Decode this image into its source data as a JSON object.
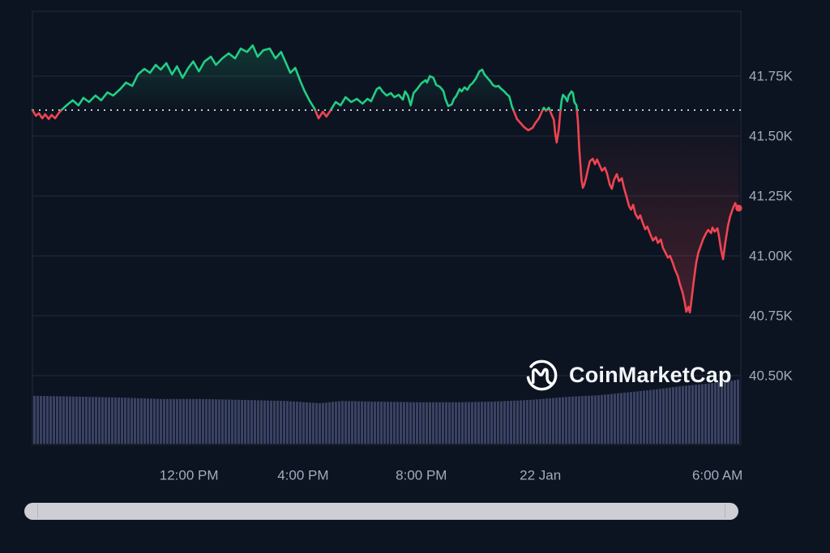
{
  "watermark": {
    "text": "CoinMarketCap"
  },
  "colors": {
    "up": "#21CE85",
    "down": "#EF4452",
    "background": "#0D1421",
    "grid": "#232A3C",
    "axis_text": "#A2AABD",
    "baseline_dots": "#DDE1E8",
    "volume_bar": "#3A4264",
    "scrollbar": "#CDCFD5",
    "logo": "#FFFFFF"
  },
  "chart_data": {
    "type": "line",
    "title": "24h cryptocurrency price chart (CoinMarketCap watermark), price in thousands USD",
    "open_price_k": 41.608,
    "last_price_k": 41.2,
    "high_k": 41.88,
    "low_k": 40.76,
    "y_axis": {
      "unit": "K",
      "tick_labels": [
        "41.75K",
        "41.50K",
        "41.25K",
        "41.00K",
        "40.75K",
        "40.50K"
      ],
      "tick_values_k": [
        41.75,
        41.5,
        41.25,
        41.0,
        40.75,
        40.5
      ],
      "side": "right"
    },
    "x_axis": {
      "tick_labels": [
        "12:00 PM",
        "4:00 PM",
        "8:00 PM",
        "22 Jan",
        "6:00 AM"
      ],
      "tick_positions": [
        0.221,
        0.382,
        0.549,
        0.717,
        0.967
      ]
    },
    "baseline": {
      "style": "dotted",
      "value_k": 41.608,
      "meaning": "open price; line green above, red below"
    },
    "series": [
      {
        "name": "price",
        "points_t_priceK": [
          [
            0.0,
            41.608
          ],
          [
            0.005,
            41.584
          ],
          [
            0.009,
            41.595
          ],
          [
            0.014,
            41.574
          ],
          [
            0.018,
            41.591
          ],
          [
            0.023,
            41.571
          ],
          [
            0.027,
            41.588
          ],
          [
            0.032,
            41.574
          ],
          [
            0.037,
            41.595
          ],
          [
            0.041,
            41.608
          ],
          [
            0.046,
            41.622
          ],
          [
            0.051,
            41.635
          ],
          [
            0.057,
            41.649
          ],
          [
            0.065,
            41.628
          ],
          [
            0.072,
            41.659
          ],
          [
            0.08,
            41.642
          ],
          [
            0.089,
            41.669
          ],
          [
            0.097,
            41.649
          ],
          [
            0.106,
            41.682
          ],
          [
            0.114,
            41.669
          ],
          [
            0.124,
            41.696
          ],
          [
            0.132,
            41.723
          ],
          [
            0.141,
            41.709
          ],
          [
            0.149,
            41.757
          ],
          [
            0.158,
            41.78
          ],
          [
            0.166,
            41.764
          ],
          [
            0.174,
            41.797
          ],
          [
            0.181,
            41.777
          ],
          [
            0.189,
            41.804
          ],
          [
            0.197,
            41.757
          ],
          [
            0.204,
            41.791
          ],
          [
            0.212,
            41.743
          ],
          [
            0.22,
            41.784
          ],
          [
            0.227,
            41.811
          ],
          [
            0.235,
            41.77
          ],
          [
            0.243,
            41.811
          ],
          [
            0.252,
            41.831
          ],
          [
            0.259,
            41.797
          ],
          [
            0.268,
            41.824
          ],
          [
            0.277,
            41.845
          ],
          [
            0.286,
            41.824
          ],
          [
            0.294,
            41.865
          ],
          [
            0.303,
            41.851
          ],
          [
            0.311,
            41.878
          ],
          [
            0.318,
            41.831
          ],
          [
            0.326,
            41.858
          ],
          [
            0.335,
            41.865
          ],
          [
            0.343,
            41.824
          ],
          [
            0.351,
            41.851
          ],
          [
            0.357,
            41.811
          ],
          [
            0.364,
            41.764
          ],
          [
            0.371,
            41.784
          ],
          [
            0.378,
            41.73
          ],
          [
            0.384,
            41.689
          ],
          [
            0.391,
            41.649
          ],
          [
            0.398,
            41.615
          ],
          [
            0.404,
            41.574
          ],
          [
            0.41,
            41.601
          ],
          [
            0.415,
            41.581
          ],
          [
            0.421,
            41.608
          ],
          [
            0.428,
            41.642
          ],
          [
            0.435,
            41.628
          ],
          [
            0.442,
            41.662
          ],
          [
            0.45,
            41.642
          ],
          [
            0.458,
            41.655
          ],
          [
            0.466,
            41.635
          ],
          [
            0.473,
            41.655
          ],
          [
            0.478,
            41.645
          ],
          [
            0.486,
            41.696
          ],
          [
            0.49,
            41.703
          ],
          [
            0.494,
            41.686
          ],
          [
            0.5,
            41.669
          ],
          [
            0.506,
            41.679
          ],
          [
            0.511,
            41.662
          ],
          [
            0.517,
            41.672
          ],
          [
            0.523,
            41.652
          ],
          [
            0.526,
            41.686
          ],
          [
            0.53,
            41.669
          ],
          [
            0.534,
            41.628
          ],
          [
            0.538,
            41.679
          ],
          [
            0.543,
            41.696
          ],
          [
            0.549,
            41.72
          ],
          [
            0.555,
            41.733
          ],
          [
            0.557,
            41.723
          ],
          [
            0.561,
            41.75
          ],
          [
            0.566,
            41.743
          ],
          [
            0.57,
            41.713
          ],
          [
            0.575,
            41.706
          ],
          [
            0.58,
            41.689
          ],
          [
            0.583,
            41.655
          ],
          [
            0.587,
            41.625
          ],
          [
            0.592,
            41.632
          ],
          [
            0.595,
            41.655
          ],
          [
            0.598,
            41.666
          ],
          [
            0.603,
            41.696
          ],
          [
            0.606,
            41.686
          ],
          [
            0.61,
            41.703
          ],
          [
            0.614,
            41.693
          ],
          [
            0.618,
            41.713
          ],
          [
            0.621,
            41.72
          ],
          [
            0.626,
            41.74
          ],
          [
            0.631,
            41.77
          ],
          [
            0.635,
            41.777
          ],
          [
            0.638,
            41.757
          ],
          [
            0.643,
            41.74
          ],
          [
            0.646,
            41.73
          ],
          [
            0.65,
            41.713
          ],
          [
            0.654,
            41.706
          ],
          [
            0.658,
            41.709
          ],
          [
            0.661,
            41.699
          ],
          [
            0.666,
            41.686
          ],
          [
            0.669,
            41.676
          ],
          [
            0.673,
            41.666
          ],
          [
            0.675,
            41.645
          ],
          [
            0.677,
            41.622
          ],
          [
            0.68,
            41.601
          ],
          [
            0.684,
            41.571
          ],
          [
            0.689,
            41.554
          ],
          [
            0.694,
            41.537
          ],
          [
            0.7,
            41.524
          ],
          [
            0.706,
            41.534
          ],
          [
            0.71,
            41.554
          ],
          [
            0.715,
            41.574
          ],
          [
            0.719,
            41.601
          ],
          [
            0.722,
            41.618
          ],
          [
            0.725,
            41.605
          ],
          [
            0.729,
            41.618
          ],
          [
            0.732,
            41.595
          ],
          [
            0.736,
            41.568
          ],
          [
            0.738,
            41.51
          ],
          [
            0.74,
            41.473
          ],
          [
            0.743,
            41.527
          ],
          [
            0.745,
            41.595
          ],
          [
            0.747,
            41.649
          ],
          [
            0.749,
            41.672
          ],
          [
            0.752,
            41.662
          ],
          [
            0.755,
            41.645
          ],
          [
            0.757,
            41.669
          ],
          [
            0.761,
            41.686
          ],
          [
            0.763,
            41.679
          ],
          [
            0.765,
            41.642
          ],
          [
            0.768,
            41.628
          ],
          [
            0.77,
            41.561
          ],
          [
            0.772,
            41.443
          ],
          [
            0.775,
            41.318
          ],
          [
            0.777,
            41.284
          ],
          [
            0.779,
            41.297
          ],
          [
            0.782,
            41.331
          ],
          [
            0.784,
            41.358
          ],
          [
            0.787,
            41.395
          ],
          [
            0.791,
            41.405
          ],
          [
            0.794,
            41.382
          ],
          [
            0.797,
            41.402
          ],
          [
            0.801,
            41.375
          ],
          [
            0.804,
            41.355
          ],
          [
            0.808,
            41.368
          ],
          [
            0.811,
            41.345
          ],
          [
            0.815,
            41.297
          ],
          [
            0.818,
            41.28
          ],
          [
            0.821,
            41.318
          ],
          [
            0.825,
            41.341
          ],
          [
            0.828,
            41.311
          ],
          [
            0.832,
            41.324
          ],
          [
            0.835,
            41.284
          ],
          [
            0.839,
            41.243
          ],
          [
            0.842,
            41.209
          ],
          [
            0.845,
            41.193
          ],
          [
            0.848,
            41.213
          ],
          [
            0.851,
            41.176
          ],
          [
            0.855,
            41.155
          ],
          [
            0.858,
            41.169
          ],
          [
            0.861,
            41.142
          ],
          [
            0.865,
            41.111
          ],
          [
            0.868,
            41.122
          ],
          [
            0.872,
            41.091
          ],
          [
            0.876,
            41.064
          ],
          [
            0.88,
            41.078
          ],
          [
            0.883,
            41.054
          ],
          [
            0.887,
            41.068
          ],
          [
            0.89,
            41.034
          ],
          [
            0.894,
            41.01
          ],
          [
            0.897,
            40.993
          ],
          [
            0.9,
            41.0
          ],
          [
            0.904,
            40.97
          ],
          [
            0.907,
            40.943
          ],
          [
            0.911,
            40.916
          ],
          [
            0.914,
            40.882
          ],
          [
            0.918,
            40.845
          ],
          [
            0.921,
            40.801
          ],
          [
            0.923,
            40.767
          ],
          [
            0.926,
            40.787
          ],
          [
            0.928,
            40.764
          ],
          [
            0.93,
            40.807
          ],
          [
            0.934,
            40.905
          ],
          [
            0.937,
            40.97
          ],
          [
            0.94,
            41.014
          ],
          [
            0.944,
            41.047
          ],
          [
            0.947,
            41.071
          ],
          [
            0.951,
            41.095
          ],
          [
            0.954,
            41.108
          ],
          [
            0.958,
            41.095
          ],
          [
            0.96,
            41.118
          ],
          [
            0.963,
            41.101
          ],
          [
            0.967,
            41.115
          ],
          [
            0.969,
            41.084
          ],
          [
            0.972,
            41.027
          ],
          [
            0.975,
            40.986
          ],
          [
            0.978,
            41.054
          ],
          [
            0.982,
            41.128
          ],
          [
            0.985,
            41.166
          ],
          [
            0.989,
            41.199
          ],
          [
            0.992,
            41.22
          ],
          [
            0.995,
            41.199
          ],
          [
            0.997,
            41.199
          ]
        ]
      }
    ],
    "volume_profile": {
      "note": "relative bar heights 0-1, no numeric axis shown on chart",
      "anchors_t_height": [
        [
          0.0,
          0.74
        ],
        [
          0.07,
          0.725
        ],
        [
          0.13,
          0.71
        ],
        [
          0.18,
          0.69
        ],
        [
          0.24,
          0.69
        ],
        [
          0.3,
          0.675
        ],
        [
          0.355,
          0.66
        ],
        [
          0.405,
          0.625
        ],
        [
          0.435,
          0.66
        ],
        [
          0.48,
          0.65
        ],
        [
          0.54,
          0.64
        ],
        [
          0.6,
          0.64
        ],
        [
          0.65,
          0.65
        ],
        [
          0.7,
          0.675
        ],
        [
          0.755,
          0.725
        ],
        [
          0.8,
          0.75
        ],
        [
          0.845,
          0.8
        ],
        [
          0.88,
          0.84
        ],
        [
          0.915,
          0.89
        ],
        [
          0.95,
          0.925
        ],
        [
          0.978,
          0.96
        ],
        [
          1.0,
          1.0
        ]
      ]
    },
    "legend": "none",
    "grid": "horizontal-only"
  }
}
